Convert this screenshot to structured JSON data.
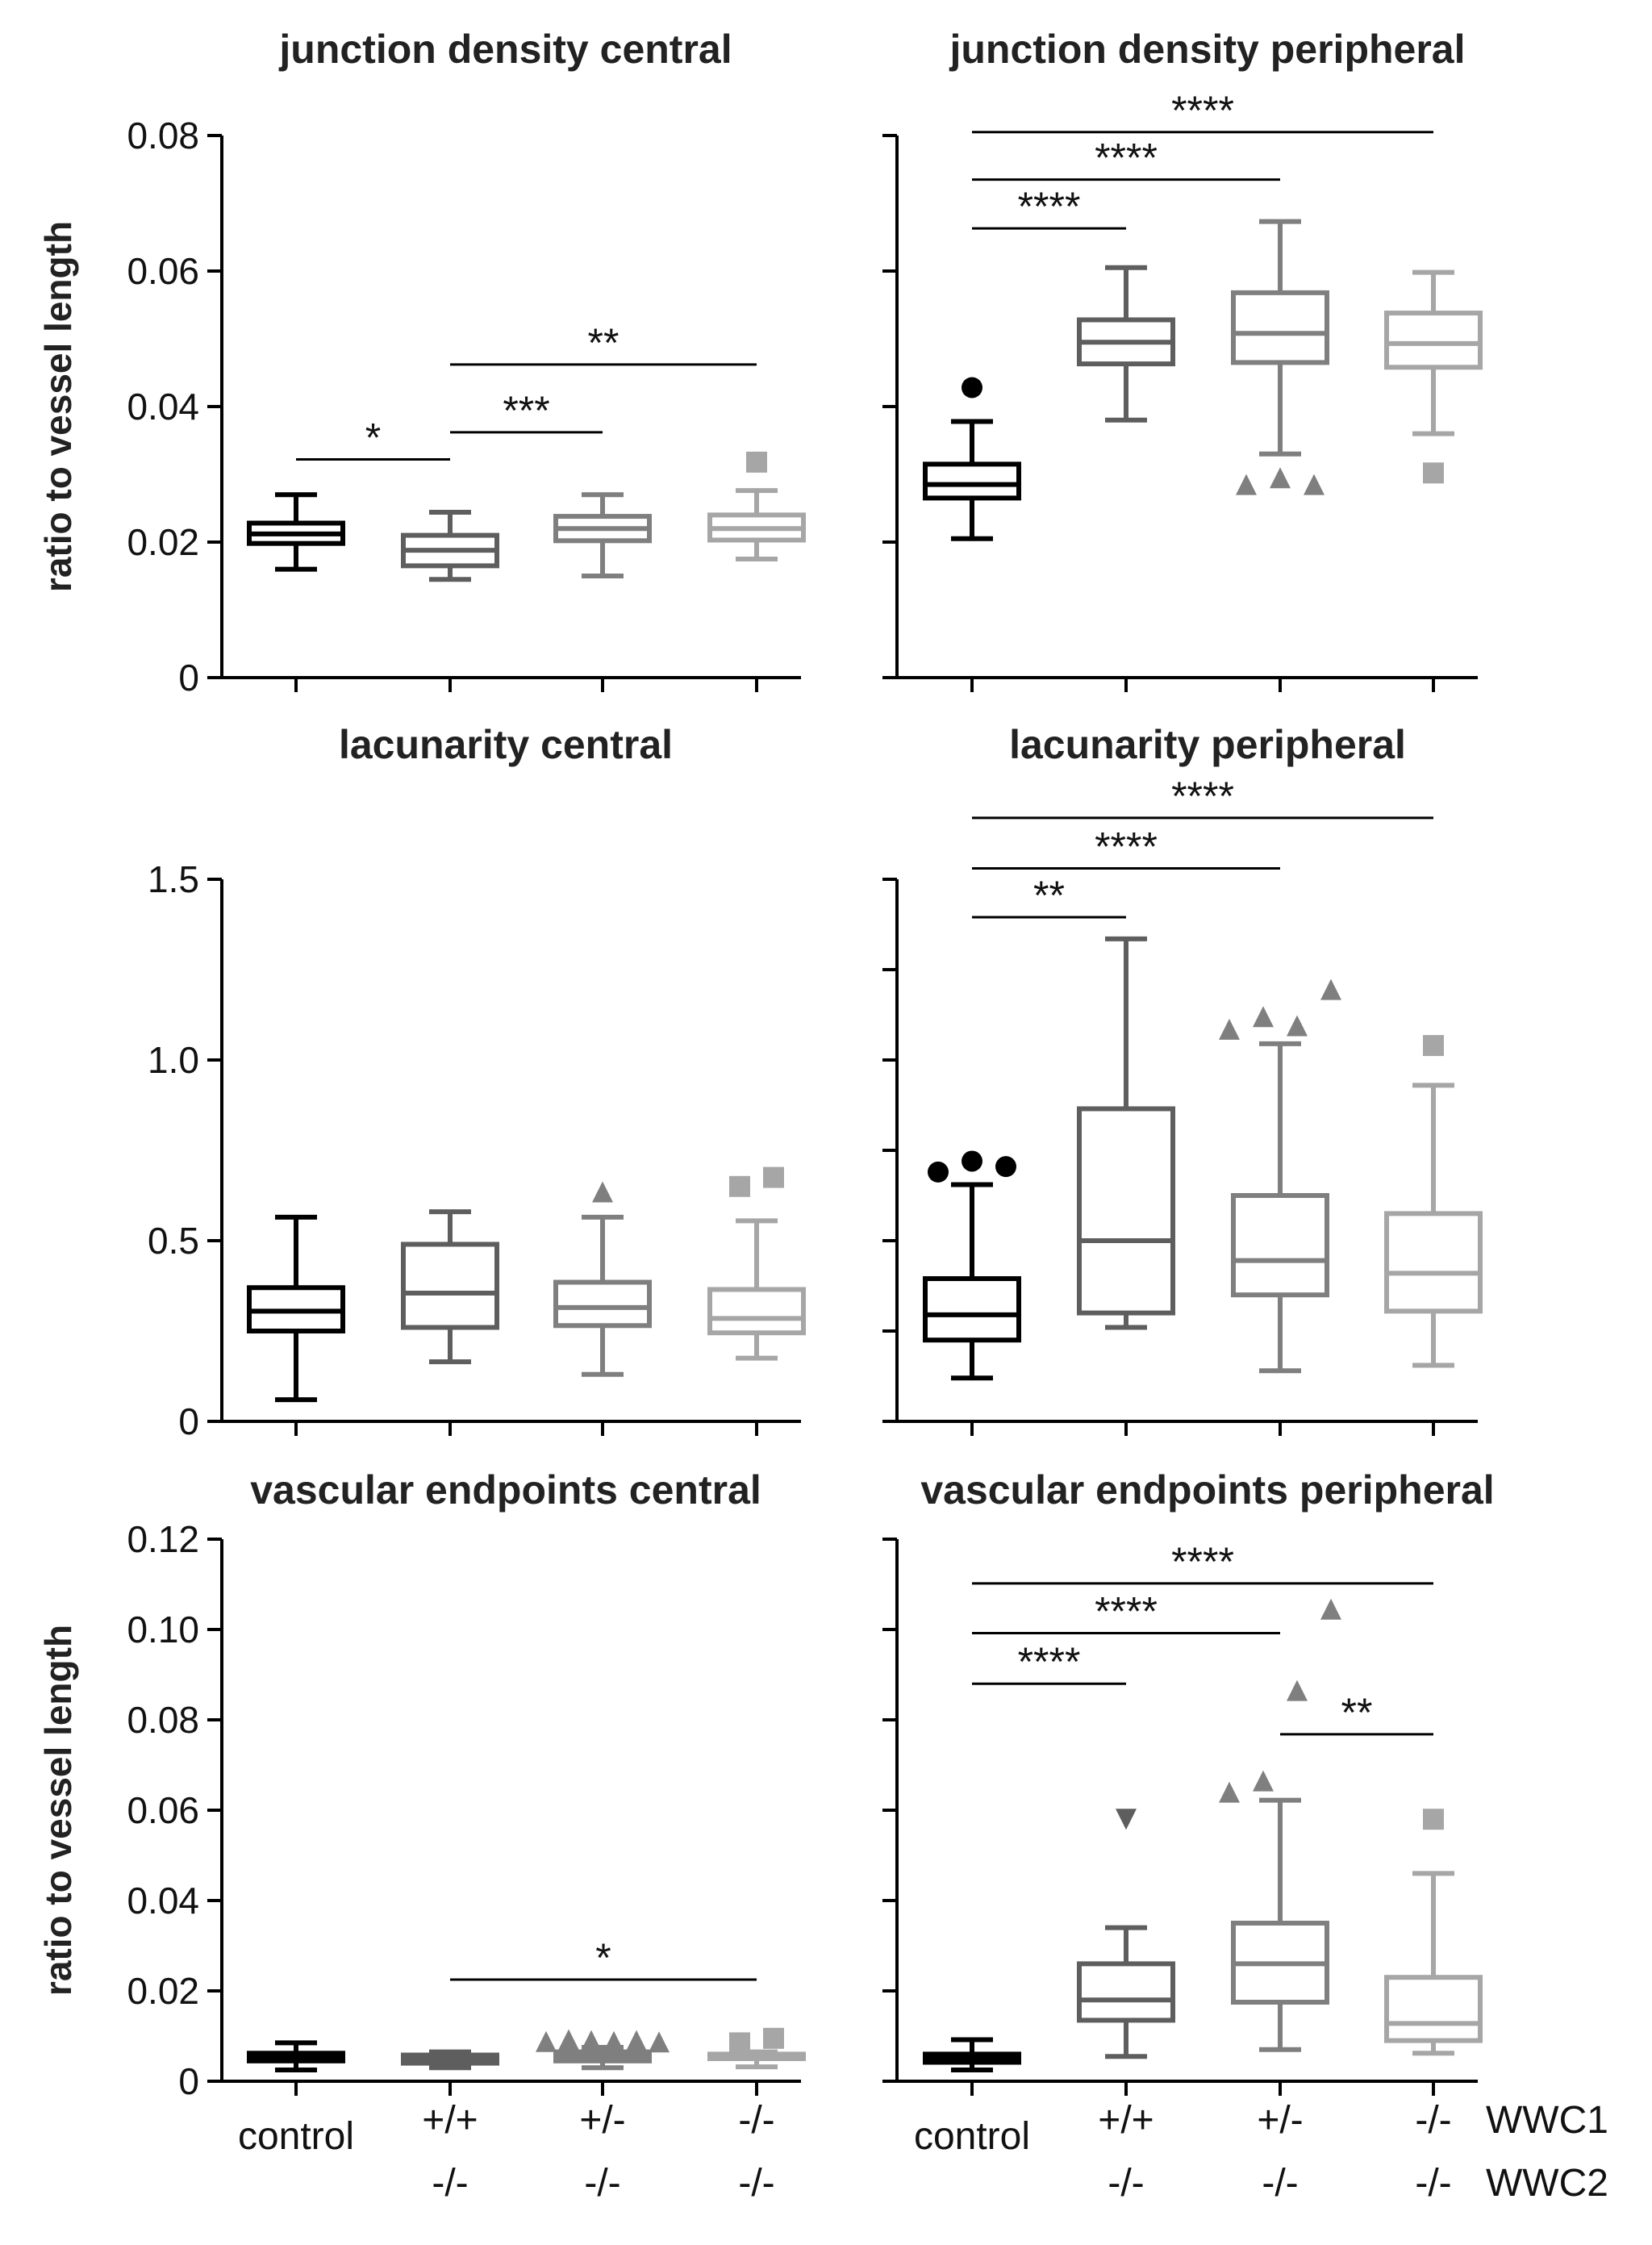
{
  "group_colors": [
    "#000000",
    "#5e5e5e",
    "#7f7f7f",
    "#a6a6a6"
  ],
  "x_labels": {
    "control": "control",
    "g2_wwc1": "+/+",
    "g2_wwc2": "-/-",
    "g3_wwc1": "+/-",
    "g3_wwc2": "-/-",
    "g4_wwc1": "-/-",
    "g4_wwc2": "-/-",
    "wwc1": "WWC1",
    "wwc2": "WWC2"
  },
  "chart_data": [
    {
      "type": "box",
      "title": "junction density central",
      "ylabel": "ratio to vessel length",
      "ylim": [
        0,
        0.08
      ],
      "yticks": [
        0,
        0.02,
        0.04,
        0.06,
        0.08
      ],
      "yticklabels": [
        "0",
        "0.02",
        "0.04",
        "0.06",
        "0.08"
      ],
      "categories": [
        "control",
        "WWC1 +/+ WWC2 -/-",
        "WWC1 +/- WWC2 -/-",
        "WWC1 -/- WWC2 -/-"
      ],
      "boxes": [
        {
          "whislo": 0.016,
          "q1": 0.0198,
          "med": 0.0212,
          "q3": 0.0228,
          "whishi": 0.027,
          "outliers": [],
          "marker": "circle"
        },
        {
          "whislo": 0.0145,
          "q1": 0.0165,
          "med": 0.0188,
          "q3": 0.021,
          "whishi": 0.0244,
          "outliers": [],
          "marker": "triangle-down"
        },
        {
          "whislo": 0.015,
          "q1": 0.0202,
          "med": 0.022,
          "q3": 0.0238,
          "whishi": 0.027,
          "outliers": [],
          "marker": "triangle"
        },
        {
          "whislo": 0.0175,
          "q1": 0.0203,
          "med": 0.022,
          "q3": 0.024,
          "whishi": 0.0276,
          "outliers": [
            0.0318
          ],
          "marker": "square"
        }
      ],
      "significance": [
        {
          "from": 0,
          "to": 1,
          "y": 0.0322,
          "label": "*"
        },
        {
          "from": 1,
          "to": 2,
          "y": 0.0362,
          "label": "***"
        },
        {
          "from": 1,
          "to": 3,
          "y": 0.0462,
          "label": "**"
        }
      ]
    },
    {
      "type": "box",
      "title": "junction density peripheral",
      "ylabel": "",
      "ylim": [
        0,
        0.08
      ],
      "yticks": [
        0,
        0.02,
        0.04,
        0.06,
        0.08
      ],
      "yticklabels": [],
      "categories": [
        "control",
        "WWC1 +/+ WWC2 -/-",
        "WWC1 +/- WWC2 -/-",
        "WWC1 -/- WWC2 -/-"
      ],
      "boxes": [
        {
          "whislo": 0.0205,
          "q1": 0.0265,
          "med": 0.0285,
          "q3": 0.0315,
          "whishi": 0.0378,
          "outliers": [
            0.0428
          ],
          "marker": "circle"
        },
        {
          "whislo": 0.038,
          "q1": 0.0463,
          "med": 0.0495,
          "q3": 0.0528,
          "whishi": 0.0605,
          "outliers": [],
          "marker": "triangle-down"
        },
        {
          "whislo": 0.033,
          "q1": 0.0465,
          "med": 0.0508,
          "q3": 0.0568,
          "whishi": 0.0673,
          "outliers": [
            0.0285,
            0.0295,
            0.0285
          ],
          "marker": "triangle"
        },
        {
          "whislo": 0.036,
          "q1": 0.0458,
          "med": 0.0493,
          "q3": 0.0538,
          "whishi": 0.0598,
          "outliers": [
            0.0302
          ],
          "marker": "square"
        }
      ],
      "significance": [
        {
          "from": 0,
          "to": 1,
          "y": 0.0663,
          "label": "****"
        },
        {
          "from": 0,
          "to": 2,
          "y": 0.0735,
          "label": "****"
        },
        {
          "from": 0,
          "to": 3,
          "y": 0.0805,
          "label": "****"
        }
      ]
    },
    {
      "type": "box",
      "title": "lacunarity central",
      "ylabel": "",
      "ylim": [
        0,
        1.5
      ],
      "yticks": [
        0,
        0.5,
        1.0,
        1.5
      ],
      "yticklabels": [
        "0",
        "0.5",
        "1.0",
        "1.5"
      ],
      "categories": [
        "control",
        "WWC1 +/+ WWC2 -/-",
        "WWC1 +/- WWC2 -/-",
        "WWC1 -/- WWC2 -/-"
      ],
      "boxes": [
        {
          "whislo": 0.06,
          "q1": 0.25,
          "med": 0.305,
          "q3": 0.37,
          "whishi": 0.565,
          "outliers": [],
          "marker": "circle"
        },
        {
          "whislo": 0.165,
          "q1": 0.26,
          "med": 0.355,
          "q3": 0.49,
          "whishi": 0.58,
          "outliers": [],
          "marker": "triangle-down"
        },
        {
          "whislo": 0.13,
          "q1": 0.265,
          "med": 0.315,
          "q3": 0.385,
          "whishi": 0.565,
          "outliers": [
            0.635
          ],
          "marker": "triangle"
        },
        {
          "whislo": 0.175,
          "q1": 0.245,
          "med": 0.285,
          "q3": 0.365,
          "whishi": 0.555,
          "outliers": [
            0.65,
            0.675
          ],
          "marker": "square"
        }
      ],
      "significance": []
    },
    {
      "type": "box",
      "title": "lacunarity peripheral",
      "ylabel": "",
      "ylim": [
        0,
        1.5
      ],
      "yticks": [
        0,
        0.25,
        0.5,
        0.75,
        1.0,
        1.25,
        1.5
      ],
      "yticklabels": [],
      "categories": [
        "control",
        "WWC1 +/+ WWC2 -/-",
        "WWC1 +/- WWC2 -/-",
        "WWC1 -/- WWC2 -/-"
      ],
      "boxes": [
        {
          "whislo": 0.12,
          "q1": 0.225,
          "med": 0.295,
          "q3": 0.395,
          "whishi": 0.655,
          "outliers": [
            0.69,
            0.72,
            0.705
          ],
          "marker": "circle"
        },
        {
          "whislo": 0.26,
          "q1": 0.3,
          "med": 0.5,
          "q3": 0.865,
          "whishi": 1.335,
          "outliers": [],
          "marker": "triangle-down"
        },
        {
          "whislo": 0.14,
          "q1": 0.35,
          "med": 0.445,
          "q3": 0.625,
          "whishi": 1.045,
          "outliers": [
            1.085,
            1.12,
            1.095,
            1.195
          ],
          "marker": "triangle"
        },
        {
          "whislo": 0.155,
          "q1": 0.305,
          "med": 0.41,
          "q3": 0.575,
          "whishi": 0.93,
          "outliers": [
            1.04
          ],
          "marker": "square"
        }
      ],
      "significance": [
        {
          "from": 0,
          "to": 1,
          "y": 1.395,
          "label": "**"
        },
        {
          "from": 0,
          "to": 2,
          "y": 1.53,
          "label": "****"
        },
        {
          "from": 0,
          "to": 3,
          "y": 1.67,
          "label": "****"
        }
      ]
    },
    {
      "type": "box",
      "title": "vascular endpoints central",
      "ylabel": "ratio to vessel length",
      "ylim": [
        0,
        0.12
      ],
      "yticks": [
        0,
        0.02,
        0.04,
        0.06,
        0.08,
        0.1,
        0.12
      ],
      "yticklabels": [
        "0",
        "0.02",
        "0.04",
        "0.06",
        "0.08",
        "0.10",
        "0.12"
      ],
      "categories": [
        "control",
        "WWC1 +/+ WWC2 -/-",
        "WWC1 +/- WWC2 -/-",
        "WWC1 -/- WWC2 -/-"
      ],
      "boxes": [
        {
          "whislo": 0.0025,
          "q1": 0.0045,
          "med": 0.0052,
          "q3": 0.0062,
          "whishi": 0.0085,
          "outliers": [],
          "marker": "circle"
        },
        {
          "whislo": 0.003,
          "q1": 0.004,
          "med": 0.0048,
          "q3": 0.0058,
          "whishi": 0.0065,
          "outliers": [],
          "marker": "triangle-down"
        },
        {
          "whislo": 0.003,
          "q1": 0.0045,
          "med": 0.0055,
          "q3": 0.0065,
          "whishi": 0.0075,
          "outliers": [
            0.0088,
            0.0092,
            0.009,
            0.0088,
            0.009,
            0.0087
          ],
          "marker": "triangle"
        },
        {
          "whislo": 0.0032,
          "q1": 0.005,
          "med": 0.0055,
          "q3": 0.006,
          "whishi": 0.0065,
          "outliers": [
            0.0085,
            0.0095
          ],
          "marker": "square"
        }
      ],
      "significance": [
        {
          "from": 1,
          "to": 3,
          "y": 0.0225,
          "label": "*"
        }
      ]
    },
    {
      "type": "box",
      "title": "vascular endpoints peripheral",
      "ylabel": "",
      "ylim": [
        0,
        0.12
      ],
      "yticks": [
        0,
        0.02,
        0.04,
        0.06,
        0.08,
        0.1,
        0.12
      ],
      "yticklabels": [],
      "categories": [
        "control",
        "WWC1 +/+ WWC2 -/-",
        "WWC1 +/- WWC2 -/-",
        "WWC1 -/- WWC2 -/-"
      ],
      "boxes": [
        {
          "whislo": 0.0025,
          "q1": 0.0042,
          "med": 0.005,
          "q3": 0.006,
          "whishi": 0.0092,
          "outliers": [],
          "marker": "circle"
        },
        {
          "whislo": 0.0055,
          "q1": 0.0135,
          "med": 0.018,
          "q3": 0.026,
          "whishi": 0.034,
          "outliers": [
            0.058
          ],
          "marker": "triangle-down"
        },
        {
          "whislo": 0.007,
          "q1": 0.0175,
          "med": 0.026,
          "q3": 0.035,
          "whishi": 0.0622,
          "outliers": [
            0.064,
            0.0665,
            0.0865,
            0.1045
          ],
          "marker": "triangle"
        },
        {
          "whislo": 0.0062,
          "q1": 0.009,
          "med": 0.0128,
          "q3": 0.023,
          "whishi": 0.046,
          "outliers": [
            0.058
          ],
          "marker": "square"
        }
      ],
      "significance": [
        {
          "from": 0,
          "to": 1,
          "y": 0.088,
          "label": "****"
        },
        {
          "from": 0,
          "to": 2,
          "y": 0.0992,
          "label": "****"
        },
        {
          "from": 0,
          "to": 3,
          "y": 0.1102,
          "label": "****"
        },
        {
          "from": 2,
          "to": 3,
          "y": 0.0768,
          "label": "**"
        }
      ]
    }
  ]
}
